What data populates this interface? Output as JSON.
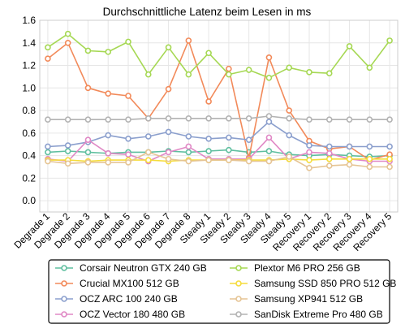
{
  "chart_data": {
    "type": "line",
    "title": "Durchschnittliche Latenz beim Lesen in ms",
    "xlabel": "",
    "ylabel": "",
    "ylim": [
      -0.1,
      1.6
    ],
    "yticks": [
      0.0,
      0.2,
      0.4,
      0.6,
      0.8,
      1.0,
      1.2,
      1.4,
      1.6
    ],
    "grid": true,
    "legend_position": "bottom",
    "categories": [
      "Degrade 1",
      "Degrade 2",
      "Degrade 3",
      "Degrade 4",
      "Degrade 5",
      "Degrade 6",
      "Degrade 7",
      "Degrade 8",
      "Steady 1",
      "Steady 2",
      "Steady 3",
      "Steady 4",
      "Steady 5",
      "Recovery 1",
      "Recovery 2",
      "Recovery 3",
      "Recovery 4",
      "Recovery 5"
    ],
    "series": [
      {
        "name": "Corsair Neutron GTX 240 GB",
        "color": "#5fbf9f",
        "values": [
          0.43,
          0.44,
          0.43,
          0.42,
          0.43,
          0.43,
          0.44,
          0.43,
          0.44,
          0.45,
          0.43,
          0.44,
          0.41,
          0.4,
          0.41,
          0.4,
          0.39,
          0.4
        ]
      },
      {
        "name": "Crucial MX100 512 GB",
        "color": "#f28a5a",
        "values": [
          1.26,
          1.4,
          1.0,
          0.95,
          0.93,
          0.73,
          0.99,
          1.42,
          0.88,
          1.17,
          0.38,
          1.27,
          0.8,
          0.53,
          0.46,
          0.48,
          0.36,
          0.41
        ]
      },
      {
        "name": "OCZ ARC 100 240 GB",
        "color": "#8b9fcd",
        "values": [
          0.48,
          0.49,
          0.52,
          0.58,
          0.55,
          0.57,
          0.61,
          0.57,
          0.55,
          0.56,
          0.54,
          0.7,
          0.58,
          0.49,
          0.48,
          0.48,
          0.48,
          0.48
        ]
      },
      {
        "name": "OCZ Vector 180 480 GB",
        "color": "#e088c5",
        "values": [
          0.37,
          0.35,
          0.54,
          0.42,
          0.41,
          0.35,
          0.43,
          0.48,
          0.37,
          0.37,
          0.37,
          0.56,
          0.37,
          0.43,
          0.42,
          0.37,
          0.35,
          0.35
        ]
      },
      {
        "name": "Plextor M6 PRO 256 GB",
        "color": "#a6d854",
        "values": [
          1.36,
          1.48,
          1.33,
          1.32,
          1.41,
          1.12,
          1.36,
          1.12,
          1.31,
          1.12,
          1.16,
          1.09,
          1.18,
          1.14,
          1.13,
          1.37,
          1.18,
          1.42
        ]
      },
      {
        "name": "Samsung SSD 850 PRO 512 GB",
        "color": "#f5dc3c",
        "values": [
          0.36,
          0.36,
          0.35,
          0.36,
          0.36,
          0.36,
          0.35,
          0.36,
          0.36,
          0.36,
          0.36,
          0.36,
          0.37,
          0.36,
          0.37,
          0.37,
          0.37,
          0.37
        ]
      },
      {
        "name": "Samsung XP941 512 GB",
        "color": "#e5c494",
        "values": [
          0.35,
          0.33,
          0.34,
          0.34,
          0.34,
          0.43,
          0.37,
          0.35,
          0.36,
          0.36,
          0.35,
          0.35,
          0.39,
          0.29,
          0.31,
          0.32,
          0.3,
          0.3
        ]
      },
      {
        "name": "SanDisk Extreme Pro 480 GB",
        "color": "#b3b3b3",
        "values": [
          0.72,
          0.72,
          0.72,
          0.72,
          0.72,
          0.73,
          0.73,
          0.73,
          0.73,
          0.73,
          0.73,
          0.75,
          0.73,
          0.72,
          0.72,
          0.72,
          0.72,
          0.72
        ]
      }
    ]
  }
}
